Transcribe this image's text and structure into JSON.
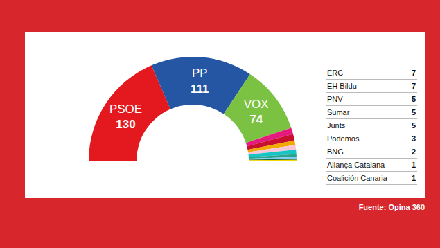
{
  "chart_data": {
    "type": "pie",
    "categories": [
      "PSOE",
      "PP",
      "VOX",
      "ERC",
      "EH Bildu",
      "PNV",
      "Sumar",
      "Junts",
      "Podemos",
      "BNG",
      "Aliança Catalana",
      "Coalición Canaria"
    ],
    "values": [
      130,
      111,
      74,
      7,
      7,
      5,
      5,
      5,
      3,
      2,
      1,
      1
    ],
    "colors": [
      "#e3191f",
      "#2456a4",
      "#7cc242",
      "#e5197e",
      "#c8102e",
      "#f2a900",
      "#f7c6d9",
      "#18c4c4",
      "#2aa38f",
      "#7fc8f8",
      "#0b6b3a",
      "#f2d600"
    ],
    "data_labels": true,
    "annotations": [
      "Fuente: Opina 360"
    ]
  }
}
